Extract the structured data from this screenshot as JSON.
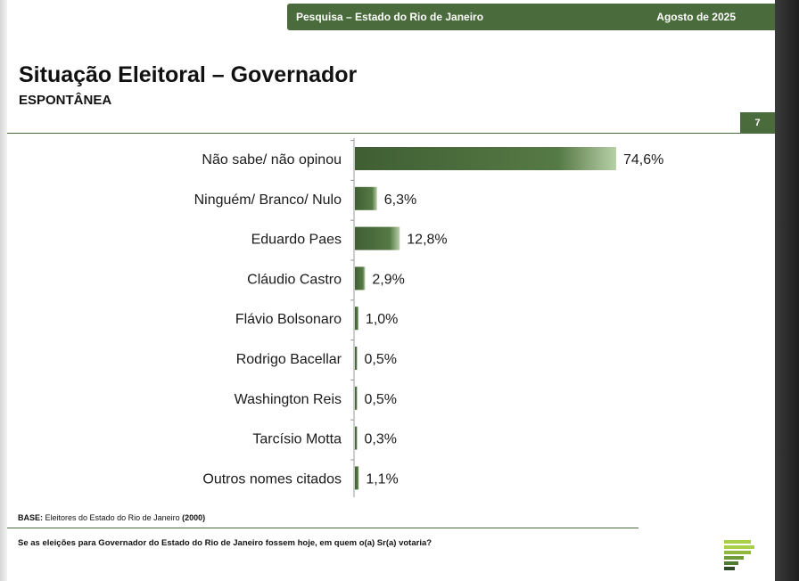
{
  "header": {
    "title": "Pesquisa – Estado do Rio de Janeiro",
    "date": "Agosto de 2025"
  },
  "slide": {
    "title": "Situação Eleitoral – Governador",
    "subtitle": "ESPONTÂNEA",
    "page_number": "7"
  },
  "chart_data": {
    "type": "bar",
    "orientation": "horizontal",
    "title": "",
    "xlabel": "",
    "ylabel": "",
    "xlim": [
      0,
      75
    ],
    "grid": false,
    "bar_color": "#4a6b3c",
    "categories": [
      "Não sabe/ não opinou",
      "Ninguém/ Branco/ Nulo",
      "Eduardo Paes",
      "Cláudio Castro",
      "Flávio Bolsonaro",
      "Rodrigo Bacellar",
      "Washington Reis",
      "Tarcísio Motta",
      "Outros nomes citados"
    ],
    "values": [
      74.6,
      6.3,
      12.8,
      2.9,
      1.0,
      0.5,
      0.5,
      0.3,
      1.1
    ],
    "value_labels": [
      "74,6%",
      "6,3%",
      "12,8%",
      "2,9%",
      "1,0%",
      "0,5%",
      "0,5%",
      "0,3%",
      "1,1%"
    ]
  },
  "footer": {
    "base_label": "BASE:",
    "base_text": "Eleitores do Estado do Rio de Janeiro",
    "base_count": "(2000)",
    "question": "Se as eleições para Governador do Estado do Rio de Janeiro fossem hoje, em quem o(a) Sr(a) votaria?"
  },
  "colors": {
    "accent": "#4a6b3c",
    "logo_light": "#a8cf45",
    "logo_dark": "#2f4a2a"
  },
  "logo_icon": "stacked-bars-logo-icon"
}
